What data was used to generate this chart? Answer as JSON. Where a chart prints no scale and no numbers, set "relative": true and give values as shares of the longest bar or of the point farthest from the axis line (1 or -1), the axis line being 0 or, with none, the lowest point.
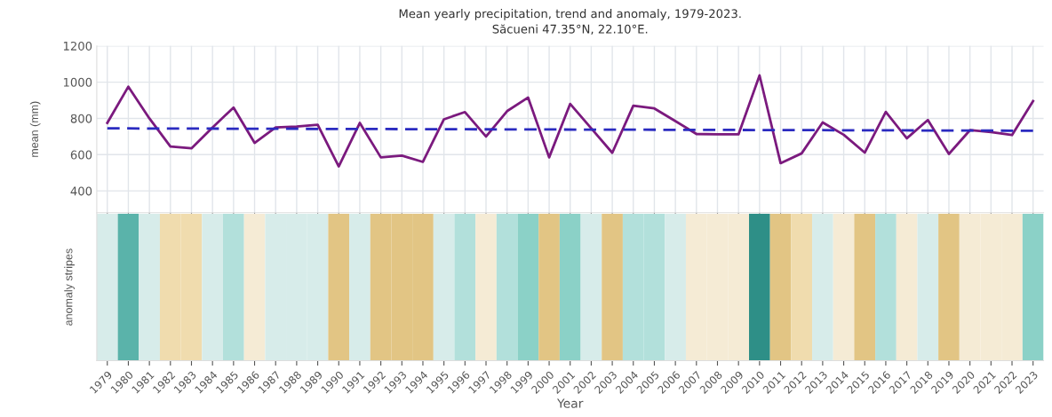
{
  "chart_data": [
    {
      "type": "line",
      "title": "Mean yearly precipitation, trend and anomaly, 1979-2023.",
      "subtitle": "Săcueni 47.35°N, 22.10°E.",
      "ylabel": "mean (mm)",
      "x": [
        1979,
        1980,
        1981,
        1982,
        1983,
        1984,
        1985,
        1986,
        1987,
        1988,
        1989,
        1990,
        1991,
        1992,
        1993,
        1994,
        1995,
        1996,
        1997,
        1998,
        1999,
        2000,
        2001,
        2002,
        2003,
        2004,
        2005,
        2006,
        2007,
        2008,
        2009,
        2010,
        2011,
        2012,
        2013,
        2014,
        2015,
        2016,
        2017,
        2018,
        2019,
        2020,
        2021,
        2022,
        2023
      ],
      "series": [
        {
          "color": "#7b1a7e",
          "line_style": "solid",
          "values": [
            775,
            975,
            800,
            645,
            635,
            750,
            860,
            665,
            750,
            755,
            765,
            535,
            775,
            585,
            595,
            560,
            795,
            835,
            700,
            840,
            915,
            585,
            880,
            745,
            610,
            870,
            855,
            785,
            714,
            712,
            712,
            1037,
            553,
            607,
            778,
            710,
            611,
            836,
            690,
            791,
            604,
            735,
            725,
            708,
            895
          ]
        },
        {
          "type": "line",
          "color": "#2b2bc0",
          "line_style": "dashed",
          "x": [
            1979,
            2023
          ],
          "values": [
            745,
            732
          ]
        }
      ],
      "xlim": [
        1978.5,
        2023.5
      ],
      "xticks": [
        1979,
        1980,
        1981,
        1982,
        1983,
        1984,
        1985,
        1986,
        1987,
        1988,
        1989,
        1990,
        1991,
        1992,
        1993,
        1994,
        1995,
        1996,
        1997,
        1998,
        1999,
        2000,
        2001,
        2002,
        2003,
        2004,
        2005,
        2006,
        2007,
        2008,
        2009,
        2010,
        2011,
        2012,
        2013,
        2014,
        2015,
        2016,
        2017,
        2018,
        2019,
        2020,
        2021,
        2022,
        2023
      ],
      "ylim": [
        280,
        1200
      ],
      "yticks": [
        400,
        600,
        800,
        1000,
        1200
      ],
      "grid": true,
      "tick_labels": "y"
    },
    {
      "type": "bar",
      "relative": true,
      "ylabel": "anomaly stripes",
      "xlabel": "Year",
      "x": [
        1979,
        1980,
        1981,
        1982,
        1983,
        1984,
        1985,
        1986,
        1987,
        1988,
        1989,
        1990,
        1991,
        1992,
        1993,
        1994,
        1995,
        1996,
        1997,
        1998,
        1999,
        2000,
        2001,
        2002,
        2003,
        2004,
        2005,
        2006,
        2007,
        2008,
        2009,
        2010,
        2011,
        2012,
        2013,
        2014,
        2015,
        2016,
        2017,
        2018,
        2019,
        2020,
        2021,
        2022,
        2023
      ],
      "values": [
        1,
        1,
        1,
        1,
        1,
        1,
        1,
        1,
        1,
        1,
        1,
        1,
        1,
        1,
        1,
        1,
        1,
        1,
        1,
        1,
        1,
        1,
        1,
        1,
        1,
        1,
        1,
        1,
        1,
        1,
        1,
        1,
        1,
        1,
        1,
        1,
        1,
        1,
        1,
        1,
        1,
        1,
        1,
        1,
        1
      ],
      "colors": [
        "#d7ecea",
        "#5ab3aa",
        "#d7ecea",
        "#f0dcae",
        "#f0dcae",
        "#d7ecea",
        "#b2e0db",
        "#f5ebd5",
        "#d7ecea",
        "#d7ecea",
        "#d7ecea",
        "#e2c584",
        "#d7ecea",
        "#e2c584",
        "#e2c584",
        "#e2c584",
        "#d7ecea",
        "#b2e0db",
        "#f5ebd5",
        "#b2e0db",
        "#8bd1c7",
        "#e2c584",
        "#8bd1c7",
        "#d7ecea",
        "#e2c584",
        "#b2e0db",
        "#b2e0db",
        "#d7ecea",
        "#f5ebd5",
        "#f5ebd5",
        "#f5ebd5",
        "#2e8f87",
        "#e2c584",
        "#f0dcae",
        "#d7ecea",
        "#f5ebd5",
        "#e2c584",
        "#b2e0db",
        "#f5ebd5",
        "#d7ecea",
        "#e2c584",
        "#f5ebd5",
        "#f5ebd5",
        "#f5ebd5",
        "#8bd1c7"
      ],
      "xlim": [
        1978.5,
        2023.5
      ],
      "xticks": [
        1979,
        1980,
        1981,
        1982,
        1983,
        1984,
        1985,
        1986,
        1987,
        1988,
        1989,
        1990,
        1991,
        1992,
        1993,
        1994,
        1995,
        1996,
        1997,
        1998,
        1999,
        2000,
        2001,
        2002,
        2003,
        2004,
        2005,
        2006,
        2007,
        2008,
        2009,
        2010,
        2011,
        2012,
        2013,
        2014,
        2015,
        2016,
        2017,
        2018,
        2019,
        2020,
        2021,
        2022,
        2023
      ],
      "tick_labels": "x"
    }
  ]
}
